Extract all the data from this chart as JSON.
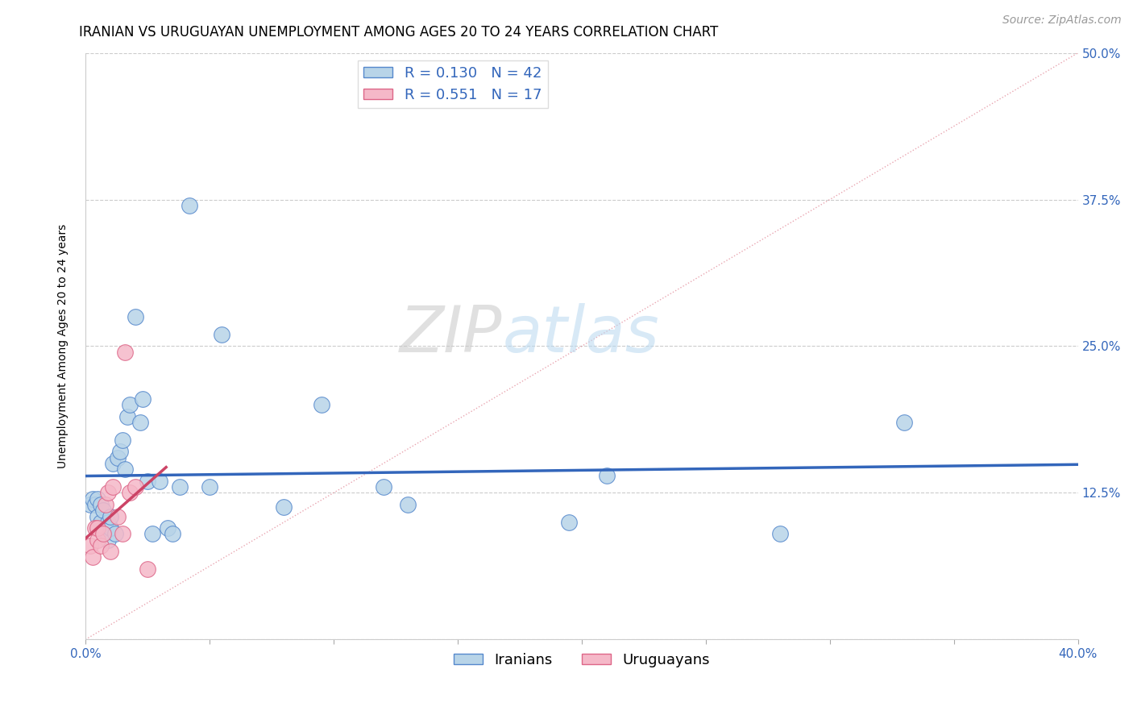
{
  "title": "IRANIAN VS URUGUAYAN UNEMPLOYMENT AMONG AGES 20 TO 24 YEARS CORRELATION CHART",
  "source": "Source: ZipAtlas.com",
  "ylabel": "Unemployment Among Ages 20 to 24 years",
  "xlim": [
    0.0,
    0.4
  ],
  "ylim": [
    0.0,
    0.5
  ],
  "xticks": [
    0.0,
    0.05,
    0.1,
    0.15,
    0.2,
    0.25,
    0.3,
    0.35,
    0.4
  ],
  "xticklabels": [
    "0.0%",
    "",
    "",
    "",
    "",
    "",
    "",
    "",
    "40.0%"
  ],
  "yticks": [
    0.0,
    0.125,
    0.25,
    0.375,
    0.5
  ],
  "yticklabels": [
    "",
    "12.5%",
    "25.0%",
    "37.5%",
    "50.0%"
  ],
  "iranian_x": [
    0.002,
    0.003,
    0.004,
    0.005,
    0.005,
    0.006,
    0.006,
    0.007,
    0.007,
    0.008,
    0.009,
    0.009,
    0.01,
    0.01,
    0.011,
    0.012,
    0.013,
    0.014,
    0.015,
    0.016,
    0.017,
    0.018,
    0.02,
    0.022,
    0.023,
    0.025,
    0.027,
    0.03,
    0.033,
    0.035,
    0.038,
    0.042,
    0.05,
    0.055,
    0.08,
    0.095,
    0.12,
    0.13,
    0.195,
    0.21,
    0.28,
    0.33
  ],
  "iranian_y": [
    0.115,
    0.12,
    0.115,
    0.105,
    0.12,
    0.1,
    0.115,
    0.09,
    0.11,
    0.095,
    0.085,
    0.1,
    0.095,
    0.105,
    0.15,
    0.09,
    0.155,
    0.16,
    0.17,
    0.145,
    0.19,
    0.2,
    0.275,
    0.185,
    0.205,
    0.135,
    0.09,
    0.135,
    0.095,
    0.09,
    0.13,
    0.37,
    0.13,
    0.26,
    0.113,
    0.2,
    0.13,
    0.115,
    0.1,
    0.14,
    0.09,
    0.185
  ],
  "uruguayan_x": [
    0.002,
    0.003,
    0.004,
    0.005,
    0.005,
    0.006,
    0.007,
    0.008,
    0.009,
    0.01,
    0.011,
    0.013,
    0.015,
    0.016,
    0.018,
    0.02,
    0.025
  ],
  "uruguayan_y": [
    0.08,
    0.07,
    0.095,
    0.085,
    0.095,
    0.08,
    0.09,
    0.115,
    0.125,
    0.075,
    0.13,
    0.105,
    0.09,
    0.245,
    0.125,
    0.13,
    0.06
  ],
  "iranian_color": "#b8d4e8",
  "uruguayan_color": "#f5b8c8",
  "iranian_edge": "#5588cc",
  "uruguayan_edge": "#dd6688",
  "iranian_R": 0.13,
  "iranian_N": 42,
  "uruguayan_R": 0.551,
  "uruguayan_N": 17,
  "trend_iranian_color": "#3366bb",
  "trend_uruguayan_color": "#cc4466",
  "diagonal_color": "#e08090",
  "legend_text_color": "#3366bb",
  "title_fontsize": 12,
  "axis_label_fontsize": 10,
  "tick_fontsize": 11,
  "legend_fontsize": 13,
  "watermark_zip_color": "#c8c8c8",
  "watermark_atlas_color": "#b8d8f0",
  "source_fontsize": 10
}
